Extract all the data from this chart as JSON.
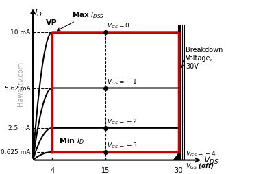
{
  "title": "",
  "bg_color": "#ffffff",
  "axis_color": "#000000",
  "red_color": "#cc0000",
  "black_color": "#000000",
  "vp_x": 4,
  "breakdown_x": 30,
  "idss_y": 10,
  "id_min_y": 0.625,
  "curves": [
    {
      "vgs": 0,
      "label": "V_{GS}=0",
      "idss": 10.0,
      "vp": 4.0,
      "color": "#000000"
    },
    {
      "vgs": -1,
      "label": "V_{GS}=-1",
      "idss": 5.62,
      "vp": 4.0,
      "color": "#000000"
    },
    {
      "vgs": -2,
      "label": "V_{GS}=-2",
      "idss": 2.5,
      "vp": 4.0,
      "color": "#000000"
    },
    {
      "vgs": -3,
      "label": "V_{GS}=-3",
      "idss": 0.625,
      "vp": 4.0,
      "color": "#000000"
    },
    {
      "vgs": -4,
      "label": "V_{GS}=-4",
      "idss": 0.0,
      "vp": 4.0,
      "color": "#000000"
    }
  ],
  "yticks": [
    0.625,
    2.5,
    5.62,
    10
  ],
  "ytick_labels": [
    "0.625 mA",
    "2.5 mA",
    "5.62 mA",
    "10 mA"
  ],
  "xticks": [
    4,
    15,
    30
  ],
  "xtick_labels": [
    "4",
    "15",
    "30"
  ],
  "xlabel": "V_{DS}",
  "ylabel": "I_D",
  "watermark": "Hawestv.com"
}
